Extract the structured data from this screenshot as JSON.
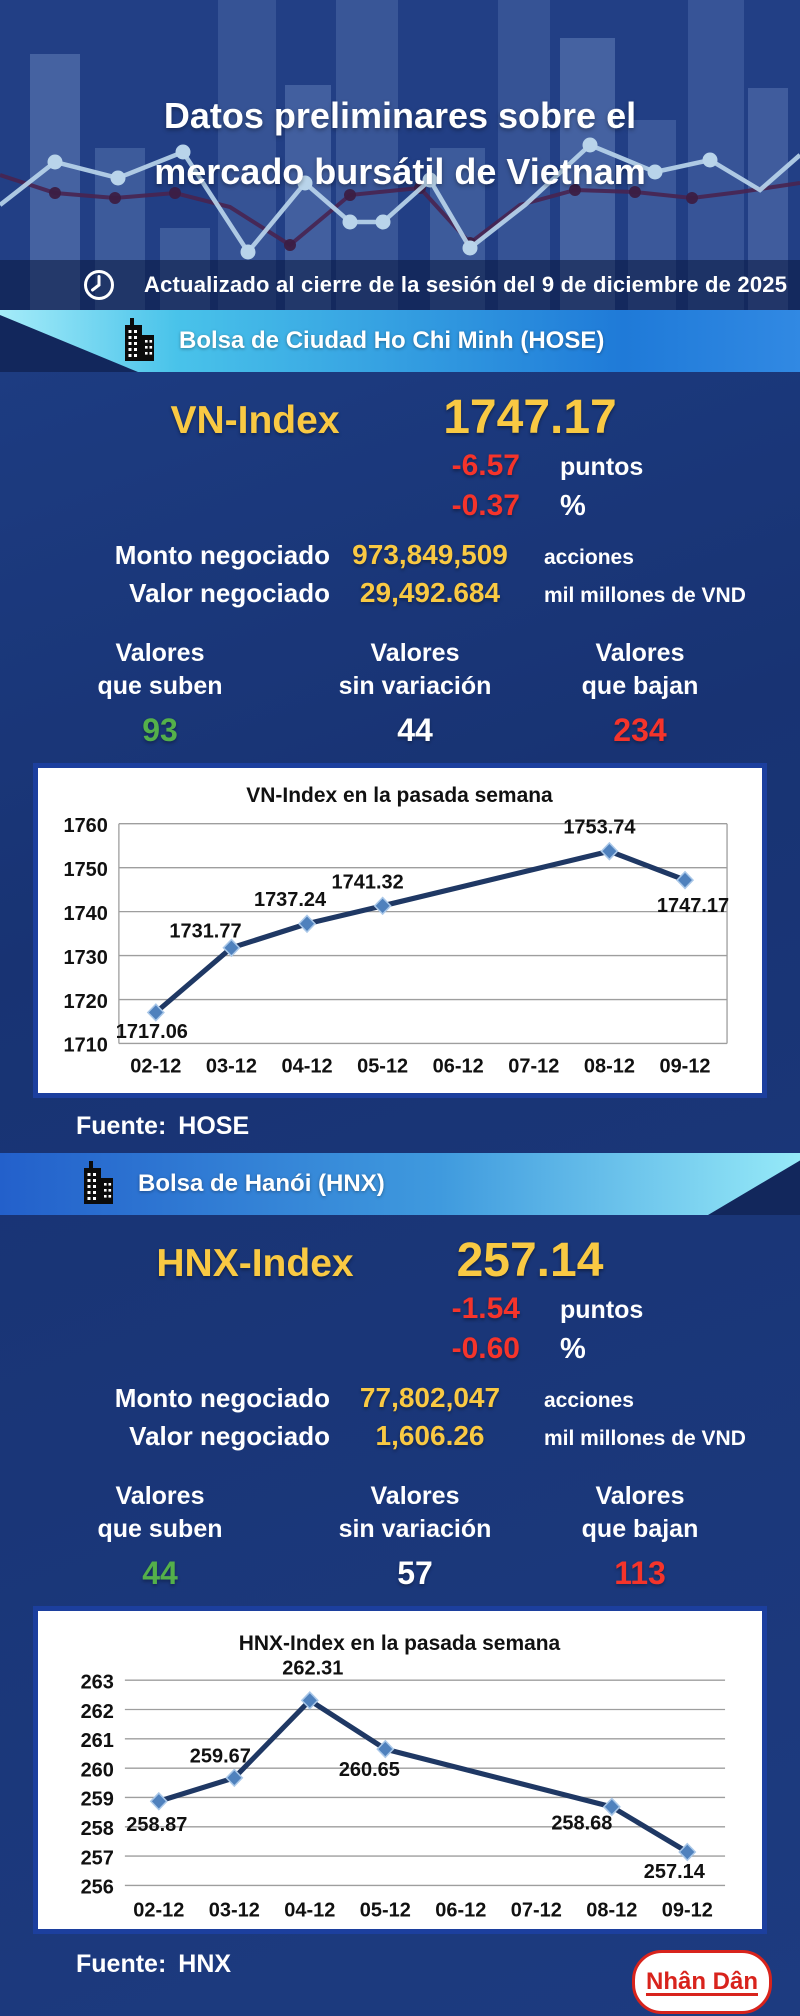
{
  "header": {
    "title_line1": "Datos preliminares sobre el",
    "title_line2": "mercado bursátil de Vietnam",
    "updated": "Actualizado al cierre de la sesión del 9 de diciembre de 2025"
  },
  "colors": {
    "yellow": "#f9c943",
    "red": "#f5342b",
    "green": "#54b04a",
    "wedge": "#12275c",
    "chart_frame": "#1c3f9e",
    "chart_line": "#1f3864",
    "chart_marker": "#4f81bd",
    "logo_red": "#d8231c"
  },
  "exchanges": [
    {
      "band_title": "Bolsa de Ciudad Ho Chi Minh (HOSE)",
      "index_label": "VN-Index",
      "index_value": "1747.17",
      "change_points": "-6.57",
      "change_points_unit": "puntos",
      "change_percent": "-0.37",
      "change_percent_unit": "%",
      "volume_label": "Monto negociado",
      "volume_value": "973,849,509",
      "volume_unit": "acciones",
      "value_label": "Valor negociado",
      "value_value": "29,492.684",
      "value_unit": "mil millones de VND",
      "stats": [
        {
          "label1": "Valores",
          "label2": "que suben",
          "value": "93",
          "direction": "up"
        },
        {
          "label1": "Valores",
          "label2": "sin variación",
          "value": "44",
          "direction": "neutral"
        },
        {
          "label1": "Valores",
          "label2": "que bajan",
          "value": "234",
          "direction": "down"
        }
      ],
      "source_label": "Fuente:",
      "source_value": "HOSE"
    },
    {
      "band_title": "Bolsa de Hanói (HNX)",
      "index_label": "HNX-Index",
      "index_value": "257.14",
      "change_points": "-1.54",
      "change_points_unit": "puntos",
      "change_percent": "-0.60",
      "change_percent_unit": "%",
      "volume_label": "Monto negociado",
      "volume_value": "77,802,047",
      "volume_unit": "acciones",
      "value_label": "Valor negociado",
      "value_value": "1,606.26",
      "value_unit": "mil millones de VND",
      "stats": [
        {
          "label1": "Valores",
          "label2": "que suben",
          "value": "44",
          "direction": "up"
        },
        {
          "label1": "Valores",
          "label2": "sin variación",
          "value": "57",
          "direction": "neutral"
        },
        {
          "label1": "Valores",
          "label2": "que bajan",
          "value": "113",
          "direction": "down"
        }
      ],
      "source_label": "Fuente:",
      "source_value": "HNX"
    }
  ],
  "footer": {
    "logo_text": "Nhân Dân"
  },
  "chart_data": [
    {
      "type": "line",
      "title": "VN-Index en la pasada semana",
      "categories": [
        "02-12",
        "03-12",
        "04-12",
        "05-12",
        "06-12",
        "07-12",
        "08-12",
        "09-12"
      ],
      "values": [
        1717.06,
        1731.77,
        1737.24,
        1741.32,
        null,
        null,
        1753.74,
        1747.17
      ],
      "point_labels": [
        "1717.06",
        "1731.77",
        "1737.24",
        "1741.32",
        "1753.74",
        "1747.17"
      ],
      "xlabel": "",
      "ylabel": "",
      "ylim": [
        1710,
        1760
      ],
      "ytick_step": 10,
      "grid": true,
      "legend": false
    },
    {
      "type": "line",
      "title": "HNX-Index en la pasada semana",
      "categories": [
        "02-12",
        "03-12",
        "04-12",
        "05-12",
        "06-12",
        "07-12",
        "08-12",
        "09-12"
      ],
      "values": [
        258.87,
        259.67,
        262.31,
        260.65,
        null,
        null,
        258.68,
        257.14
      ],
      "point_labels": [
        "258.87",
        "259.67",
        "262.31",
        "260.65",
        "258.68",
        "257.14"
      ],
      "xlabel": "",
      "ylabel": "",
      "ylim": [
        256,
        263
      ],
      "ytick_step": 1,
      "grid": true,
      "legend": false
    }
  ]
}
